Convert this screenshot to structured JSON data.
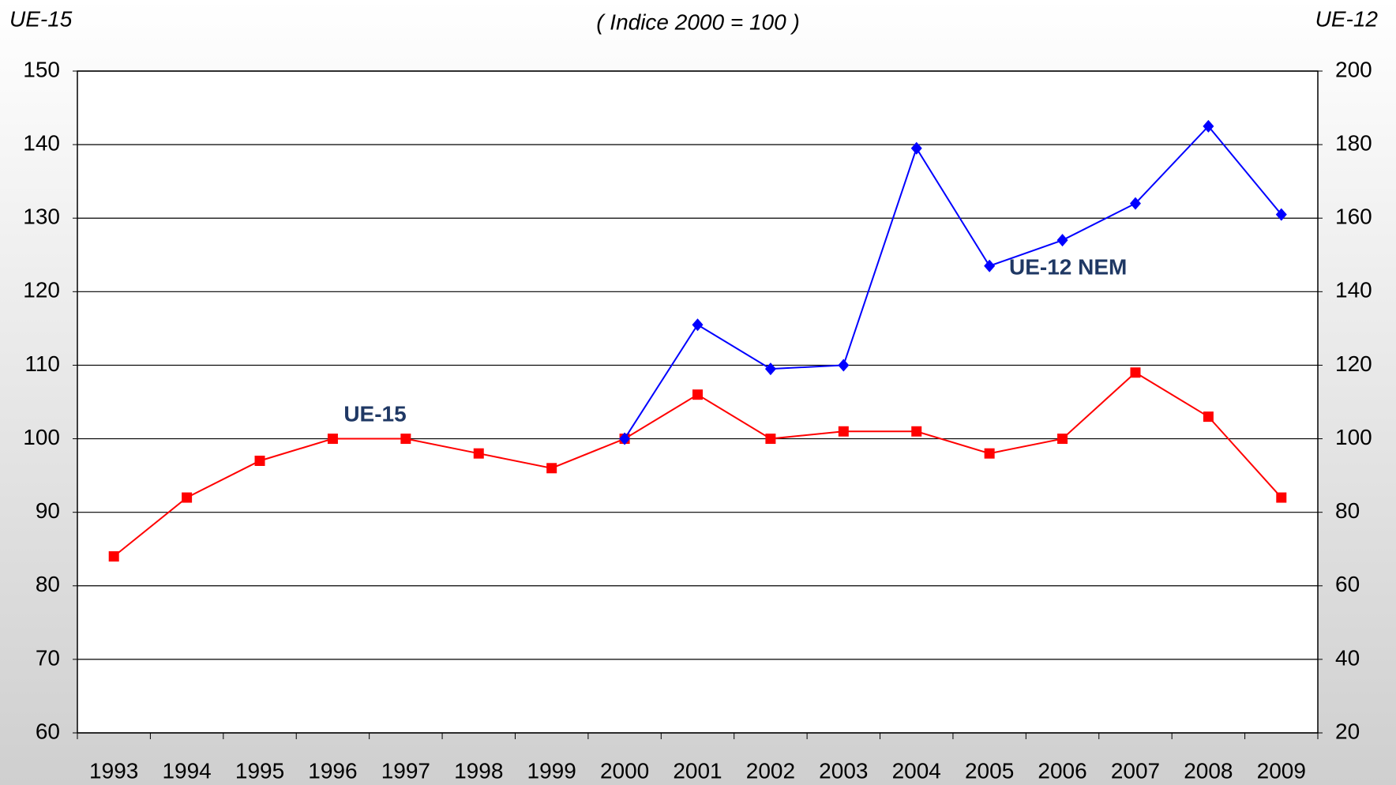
{
  "chart_data": {
    "type": "line",
    "title": "( Indice 2000 = 100 )",
    "y_label": "UE-15",
    "y2_label": "UE-12",
    "categories": [
      "1993",
      "1994",
      "1995",
      "1996",
      "1997",
      "1998",
      "1999",
      "2000",
      "2001",
      "2002",
      "2003",
      "2004",
      "2005",
      "2006",
      "2007",
      "2008",
      "2009"
    ],
    "series": [
      {
        "name": "UE-15",
        "color": "#ff0000",
        "marker": "square",
        "axis": "y",
        "values": [
          84,
          92,
          97,
          100,
          100,
          98,
          96,
          100,
          106,
          100,
          101,
          101,
          98,
          100,
          109,
          103,
          92
        ]
      },
      {
        "name": "UE-12 NEM",
        "color": "#0000ff",
        "marker": "diamond",
        "axis": "y2",
        "values": [
          null,
          null,
          null,
          null,
          null,
          null,
          null,
          100,
          131,
          119,
          120,
          179,
          147,
          154,
          164,
          185,
          161
        ]
      }
    ],
    "ylim": [
      60,
      150
    ],
    "yticks": [
      60,
      70,
      80,
      90,
      100,
      110,
      120,
      130,
      140,
      150
    ],
    "y2lim": [
      20,
      200
    ],
    "y2ticks": [
      20,
      40,
      60,
      80,
      100,
      120,
      140,
      160,
      180,
      200
    ],
    "grid": true
  }
}
